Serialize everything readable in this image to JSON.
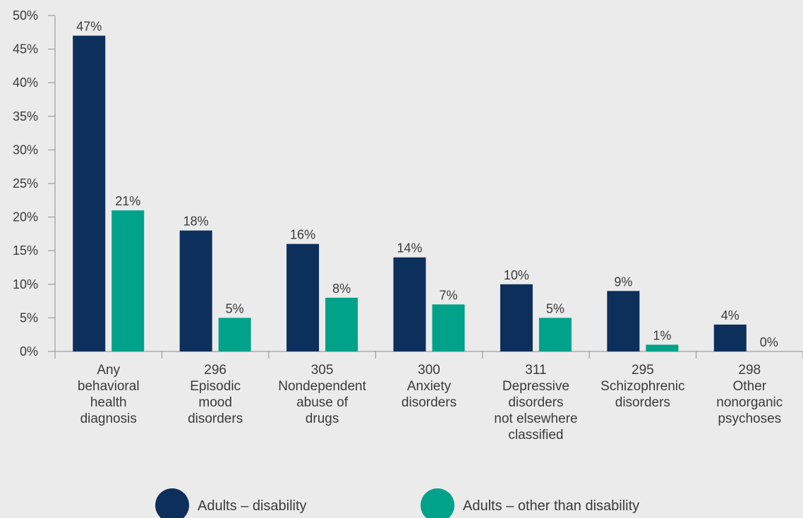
{
  "chart_data": {
    "type": "bar",
    "title": "",
    "xlabel": "",
    "ylabel": "",
    "ylim": [
      0,
      50
    ],
    "y_ticks": [
      "0%",
      "5%",
      "10%",
      "15%",
      "20%",
      "25%",
      "30%",
      "35%",
      "40%",
      "45%",
      "50%"
    ],
    "grid": false,
    "legend_position": "bottom",
    "categories": [
      [
        "Any",
        "behavioral",
        "health",
        "diagnosis"
      ],
      [
        "296",
        "Episodic",
        "mood",
        "disorders"
      ],
      [
        "305",
        "Nondependent",
        "abuse of",
        "drugs"
      ],
      [
        "300",
        "Anxiety",
        "disorders"
      ],
      [
        "311",
        "Depressive",
        "disorders",
        "not elsewhere",
        "classified"
      ],
      [
        "295",
        "Schizophrenic",
        "disorders"
      ],
      [
        "298",
        "Other",
        "nonorganic",
        "psychoses"
      ]
    ],
    "series": [
      {
        "name": "Adults – disability",
        "color": "#0d2f5c",
        "values": [
          47,
          18,
          16,
          14,
          10,
          9,
          4
        ],
        "labels": [
          "47%",
          "18%",
          "16%",
          "14%",
          "10%",
          "9%",
          "4%"
        ]
      },
      {
        "name": "Adults – other than disability",
        "color": "#00a28a",
        "values": [
          21,
          5,
          8,
          7,
          5,
          1,
          0
        ],
        "labels": [
          "21%",
          "5%",
          "8%",
          "7%",
          "5%",
          "1%",
          "0%"
        ]
      }
    ]
  }
}
